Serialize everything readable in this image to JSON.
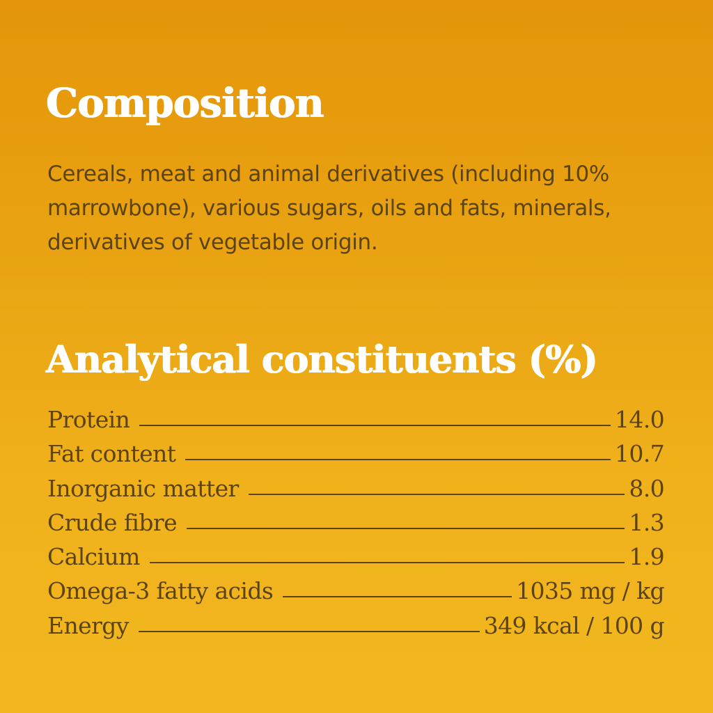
{
  "composition": {
    "title": "Composition",
    "text": "Cereals, meat and animal derivatives (including 10% marrowbone), various sugars, oils and fats, minerals, derivatives of vegetable origin."
  },
  "analytical": {
    "title": "Analytical constituents (%)",
    "rows": [
      {
        "label": "Protein",
        "value": "14.0"
      },
      {
        "label": "Fat content",
        "value": "10.7"
      },
      {
        "label": "Inorganic matter",
        "value": "8.0"
      },
      {
        "label": "Crude fibre",
        "value": "1.3"
      },
      {
        "label": "Calcium",
        "value": "1.9"
      },
      {
        "label": "Omega-3 fatty acids",
        "value": "1035 mg / kg"
      },
      {
        "label": "Energy",
        "value": "349 kcal / 100 g"
      }
    ]
  },
  "colors": {
    "background_top": "#e49509",
    "background_bottom": "#f2b720",
    "heading": "#ffffff",
    "text": "#5b4312"
  }
}
